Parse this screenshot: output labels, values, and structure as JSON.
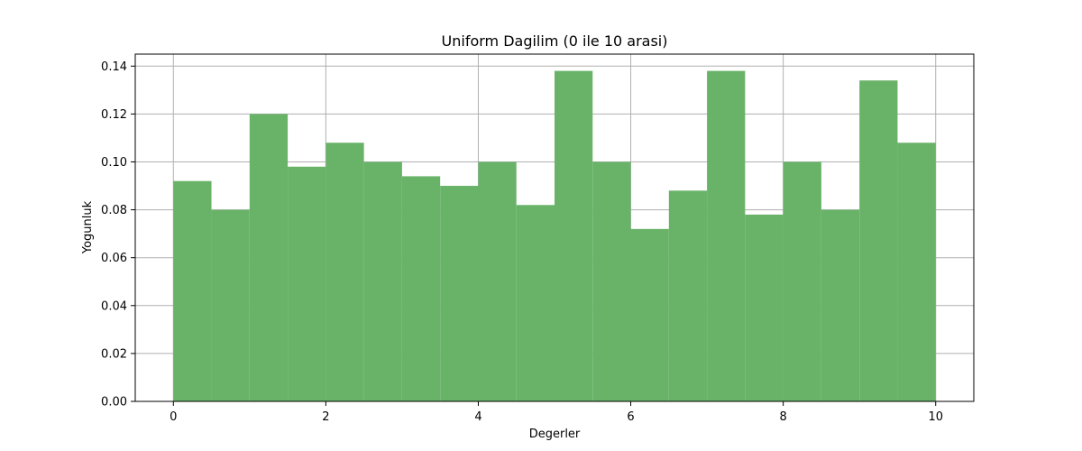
{
  "chart_data": {
    "type": "bar",
    "title": "Uniform Dagilim (0 ile 10 arasi)",
    "xlabel": "Degerler",
    "ylabel": "Yogunluk",
    "bin_edges": [
      0,
      0.5,
      1,
      1.5,
      2,
      2.5,
      3,
      3.5,
      4,
      4.5,
      5,
      5.5,
      6,
      6.5,
      7,
      7.5,
      8,
      8.5,
      9,
      9.5,
      10
    ],
    "values": [
      0.092,
      0.08,
      0.12,
      0.098,
      0.108,
      0.1,
      0.094,
      0.09,
      0.1,
      0.082,
      0.138,
      0.1,
      0.072,
      0.088,
      0.138,
      0.078,
      0.1,
      0.08,
      0.134,
      0.108
    ],
    "xlim": [
      -0.5,
      10.5
    ],
    "ylim": [
      0,
      0.145
    ],
    "xticks": [
      0,
      2,
      4,
      6,
      8,
      10
    ],
    "xtick_labels": [
      "0",
      "2",
      "4",
      "6",
      "8",
      "10"
    ],
    "yticks": [
      0,
      0.02,
      0.04,
      0.06,
      0.08,
      0.1,
      0.12,
      0.14
    ],
    "ytick_labels": [
      "0.00",
      "0.02",
      "0.04",
      "0.06",
      "0.08",
      "0.10",
      "0.12",
      "0.14"
    ],
    "bar_color": "#69b369",
    "grid": true,
    "grid_color": "#b0b0b0"
  }
}
